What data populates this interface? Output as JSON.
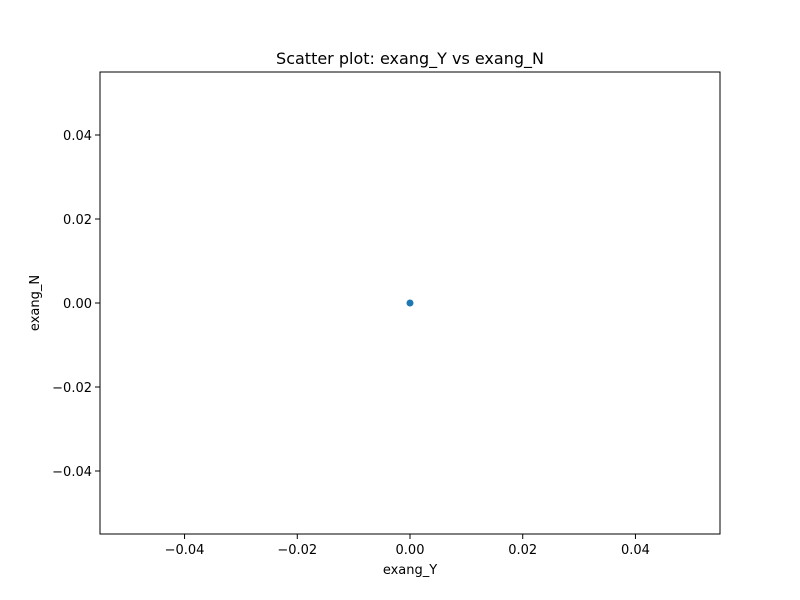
{
  "chart_data": {
    "type": "scatter",
    "title": "Scatter plot: exang_Y vs exang_N",
    "xlabel": "exang_Y",
    "ylabel": "exang_N",
    "xlim": [
      -0.055,
      0.055
    ],
    "ylim": [
      -0.055,
      0.055
    ],
    "x_ticks": [
      -0.04,
      -0.02,
      0.0,
      0.02,
      0.04
    ],
    "y_ticks": [
      -0.04,
      -0.02,
      0.0,
      0.02,
      0.04
    ],
    "x_tick_labels": [
      "−0.04",
      "−0.02",
      "0.00",
      "0.02",
      "0.04"
    ],
    "y_tick_labels": [
      "−0.04",
      "−0.02",
      "0.00",
      "0.02",
      "0.04"
    ],
    "grid": false,
    "series": [
      {
        "color": "#1f77b4",
        "points": [
          {
            "x": 0.0,
            "y": 0.0
          }
        ]
      }
    ]
  }
}
